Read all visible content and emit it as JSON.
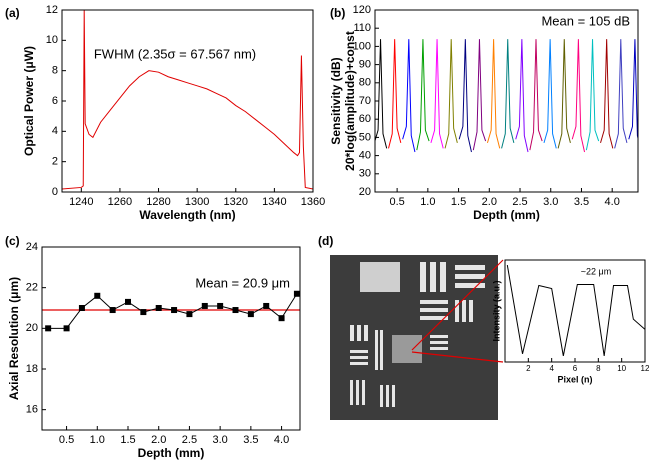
{
  "chart_data": [
    {
      "type": "line",
      "panel_label": "(a)",
      "xlabel": "Wavelength (nm)",
      "ylabel": "Optical Power (μW)",
      "annotation": "FWHM (2.35σ = 67.567 nm)",
      "xlim": [
        1230,
        1360
      ],
      "xticks": [
        1240,
        1260,
        1280,
        1300,
        1320,
        1340,
        1360
      ],
      "ylim": [
        0,
        12
      ],
      "yticks": [
        0,
        2,
        4,
        6,
        8,
        10,
        12
      ],
      "series": [
        {
          "color": "#e00000",
          "x": [
            1230,
            1240,
            1241,
            1241.5,
            1242,
            1244,
            1246,
            1250,
            1255,
            1260,
            1265,
            1270,
            1275,
            1280,
            1285,
            1290,
            1295,
            1300,
            1305,
            1310,
            1315,
            1320,
            1325,
            1330,
            1335,
            1340,
            1345,
            1350,
            1352,
            1353,
            1354,
            1355,
            1356,
            1360
          ],
          "values": [
            0.2,
            0.3,
            0.4,
            12,
            4.5,
            3.8,
            3.6,
            4.6,
            5.4,
            6.2,
            7,
            7.6,
            8,
            7.9,
            7.6,
            7.4,
            7.2,
            7,
            6.8,
            6.5,
            6.2,
            5.7,
            5.3,
            4.8,
            4.3,
            3.8,
            3.2,
            2.6,
            2.4,
            2.6,
            9,
            3,
            0.3,
            0.2
          ]
        }
      ]
    },
    {
      "type": "line",
      "panel_label": "(b)",
      "xlabel": "Depth (mm)",
      "ylabel": [
        "Sensitivity (dB)",
        "20*log(amplitude)+const"
      ],
      "annotation": "Mean = 105 dB",
      "xlim": [
        0.14,
        4.42
      ],
      "xticks": [
        0.5,
        {
          "value": 1,
          "label": "1.0"
        },
        1.5,
        {
          "value": 2,
          "label": "2.0"
        },
        2.5,
        {
          "value": 3,
          "label": "3.0"
        },
        3.5,
        {
          "value": 4,
          "label": "4.0"
        }
      ],
      "ylim": [
        20,
        120
      ],
      "yticks": [
        20,
        30,
        40,
        50,
        60,
        70,
        80,
        90,
        100,
        110,
        120
      ],
      "series": [
        {
          "color": "#000000",
          "x": [
            0.13,
            0.19,
            0.23,
            0.27,
            0.33
          ],
          "values": [
            47,
            54,
            104,
            52,
            44
          ]
        },
        {
          "color": "#ff0000",
          "x": [
            0.36,
            0.42,
            0.46,
            0.5,
            0.56
          ],
          "values": [
            44,
            52,
            104,
            55,
            47
          ]
        },
        {
          "color": "#0000ff",
          "x": [
            0.59,
            0.65,
            0.69,
            0.73,
            0.79
          ],
          "values": [
            49,
            56,
            104,
            51,
            42
          ]
        },
        {
          "color": "#00a000",
          "x": [
            0.82,
            0.88,
            0.92,
            0.96,
            1.02
          ],
          "values": [
            43,
            53,
            104,
            54,
            48
          ]
        },
        {
          "color": "#ff00ff",
          "x": [
            1.05,
            1.11,
            1.15,
            1.19,
            1.25
          ],
          "values": [
            47,
            54,
            104,
            52,
            44
          ]
        },
        {
          "color": "#808000",
          "x": [
            1.28,
            1.34,
            1.38,
            1.42,
            1.48
          ],
          "values": [
            44,
            52,
            104,
            55,
            47
          ]
        },
        {
          "color": "#000080",
          "x": [
            1.51,
            1.57,
            1.61,
            1.65,
            1.71
          ],
          "values": [
            49,
            56,
            104,
            51,
            42
          ]
        },
        {
          "color": "#800080",
          "x": [
            1.74,
            1.8,
            1.84,
            1.88,
            1.94
          ],
          "values": [
            43,
            53,
            104,
            54,
            48
          ]
        },
        {
          "color": "#ff8000",
          "x": [
            1.97,
            2.03,
            2.07,
            2.11,
            2.17
          ],
          "values": [
            47,
            54,
            104,
            52,
            44
          ]
        },
        {
          "color": "#008080",
          "x": [
            2.2,
            2.26,
            2.3,
            2.34,
            2.4
          ],
          "values": [
            44,
            52,
            104,
            55,
            47
          ]
        },
        {
          "color": "#8000ff",
          "x": [
            2.43,
            2.49,
            2.53,
            2.57,
            2.63
          ],
          "values": [
            49,
            56,
            104,
            51,
            42
          ]
        },
        {
          "color": "#c00060",
          "x": [
            2.66,
            2.72,
            2.76,
            2.8,
            2.86
          ],
          "values": [
            43,
            53,
            104,
            54,
            48
          ]
        },
        {
          "color": "#0080ff",
          "x": [
            2.89,
            2.95,
            2.99,
            3.03,
            3.09
          ],
          "values": [
            47,
            54,
            104,
            52,
            44
          ]
        },
        {
          "color": "#606000",
          "x": [
            3.12,
            3.18,
            3.22,
            3.26,
            3.32
          ],
          "values": [
            44,
            52,
            104,
            55,
            47
          ]
        },
        {
          "color": "#ff0080",
          "x": [
            3.35,
            3.41,
            3.45,
            3.49,
            3.55
          ],
          "values": [
            49,
            56,
            104,
            51,
            42
          ]
        },
        {
          "color": "#00c0c0",
          "x": [
            3.58,
            3.64,
            3.68,
            3.72,
            3.78
          ],
          "values": [
            43,
            53,
            104,
            54,
            48
          ]
        },
        {
          "color": "#a00000",
          "x": [
            3.81,
            3.87,
            3.91,
            3.95,
            4.01
          ],
          "values": [
            47,
            54,
            104,
            52,
            44
          ]
        },
        {
          "color": "#4040c0",
          "x": [
            4.04,
            4.1,
            4.14,
            4.18,
            4.24
          ],
          "values": [
            44,
            52,
            104,
            55,
            47
          ]
        },
        {
          "color": "#0000c0",
          "x": [
            4.27,
            4.33,
            4.37,
            4.41,
            4.47
          ],
          "values": [
            49,
            56,
            104,
            51,
            42
          ]
        }
      ]
    },
    {
      "type": "line",
      "panel_label": "(c)",
      "xlabel": "Depth (mm)",
      "ylabel": "Axial Resolution (μm)",
      "annotation": "Mean = 20.9 μm",
      "marker": "square",
      "reference_line": 20.9,
      "reference_color": "#e00000",
      "xlim": [
        0.1,
        4.3
      ],
      "xticks": [
        0.5,
        {
          "value": 1,
          "label": "1.0"
        },
        1.5,
        {
          "value": 2,
          "label": "2.0"
        },
        2.5,
        {
          "value": 3,
          "label": "3.0"
        },
        3.5,
        {
          "value": 4,
          "label": "4.0"
        }
      ],
      "ylim": [
        15,
        24
      ],
      "yticks": [
        16,
        18,
        20,
        22,
        24
      ],
      "series": [
        {
          "color": "#000000",
          "x": [
            0.2,
            0.5,
            0.75,
            1.0,
            1.25,
            1.5,
            1.75,
            2.0,
            2.25,
            2.5,
            2.75,
            3.0,
            3.25,
            3.5,
            3.75,
            4.0,
            4.25
          ],
          "values": [
            20.0,
            20.0,
            21.0,
            21.6,
            20.9,
            21.3,
            20.8,
            21.0,
            20.9,
            20.7,
            21.1,
            21.1,
            20.9,
            20.7,
            21.1,
            20.5,
            21.7
          ]
        }
      ]
    },
    {
      "type": "line",
      "panel_label": "(d)",
      "xlabel": "Pixel (n)",
      "ylabel": "Intensity (a.u.)",
      "annotation": "~22 μm",
      "xlim": [
        0,
        12
      ],
      "xticks": [
        2,
        4,
        6,
        8,
        10,
        12
      ],
      "ylim": [
        0,
        1
      ],
      "yticks": [],
      "series": [
        {
          "color": "#000000",
          "x": [
            0.2,
            1.5,
            2.9,
            4.0,
            5.0,
            6.2,
            7.6,
            8.5,
            9.3,
            10.5,
            11.0,
            12.0
          ],
          "values": [
            0.95,
            0.08,
            0.75,
            0.72,
            0.06,
            0.76,
            0.76,
            0.06,
            0.75,
            0.75,
            0.42,
            0.32
          ]
        }
      ]
    }
  ]
}
